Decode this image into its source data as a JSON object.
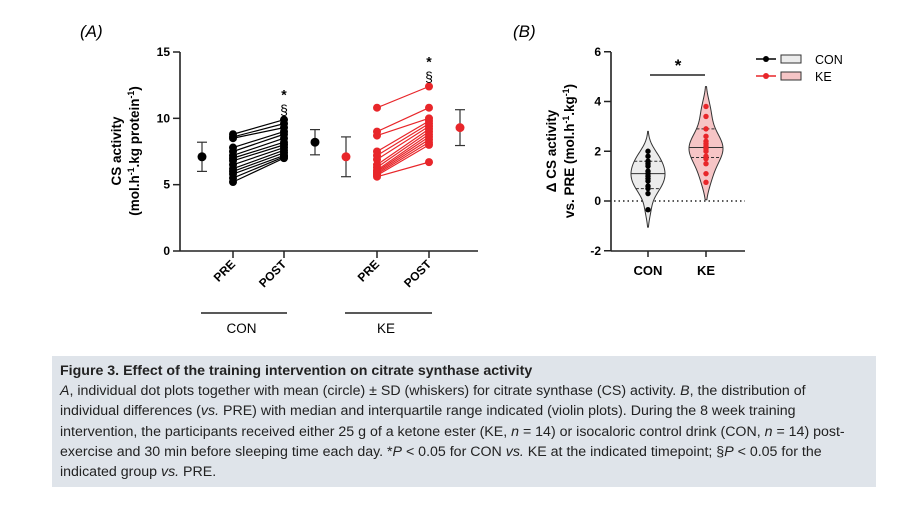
{
  "chart_data": [
    {
      "panel": "(A)",
      "type": "scatter",
      "ylabel_line1": "CS activity",
      "ylabel_line2": [
        "(mol.h",
        "-1",
        ".kg protein",
        "-1",
        ")"
      ],
      "ylim": [
        0,
        15
      ],
      "yticks": [
        "0",
        "5",
        "10",
        "15"
      ],
      "tick_labels": [
        "PRE",
        "POST",
        "PRE",
        "POST"
      ],
      "groups": [
        {
          "name": "CON",
          "color": "#000000",
          "pre": [
            8.8,
            8.6,
            8.5,
            7.8,
            7.5,
            7.2,
            7.0,
            6.8,
            6.5,
            6.2,
            6.0,
            5.8,
            5.5,
            5.2
          ],
          "post": [
            9.9,
            9.6,
            9.3,
            9.0,
            8.8,
            8.5,
            8.2,
            8.0,
            7.8,
            7.6,
            7.4,
            7.2,
            7.1,
            7.0
          ],
          "pre_mean": 7.1,
          "pre_sd": 1.1,
          "post_mean": 8.2,
          "post_sd": 0.95,
          "post_annotations": [
            "*",
            "§"
          ]
        },
        {
          "name": "KE",
          "color": "#e8262a",
          "pre": [
            10.8,
            9.0,
            8.7,
            7.5,
            7.2,
            6.9,
            6.5,
            6.3,
            6.1,
            6.0,
            5.9,
            5.8,
            5.7,
            5.6
          ],
          "post": [
            12.4,
            10.8,
            10.0,
            9.8,
            9.6,
            9.4,
            9.2,
            9.0,
            8.8,
            8.6,
            8.4,
            8.2,
            8.0,
            6.7
          ],
          "pre_mean": 7.1,
          "pre_sd": 1.5,
          "post_mean": 9.3,
          "post_sd": 1.35,
          "post_annotations": [
            "*",
            "§"
          ]
        }
      ]
    },
    {
      "panel": "(B)",
      "type": "violin",
      "ylabel_line1": "Δ CS activity",
      "ylabel_line2": [
        "vs. PRE (mol.h",
        "-1",
        ".kg",
        "-1",
        ")"
      ],
      "ylim": [
        -2,
        6
      ],
      "yticks": [
        "-2",
        "0",
        "2",
        "4",
        "6"
      ],
      "reference_line": 0,
      "significance": "*",
      "legend": {
        "placement": "top-right"
      },
      "series": [
        {
          "name": "CON",
          "color": "#000000",
          "fill": "#ececec",
          "values": [
            2.0,
            1.8,
            1.6,
            1.5,
            1.4,
            1.2,
            1.1,
            1.0,
            0.9,
            0.8,
            0.6,
            0.5,
            0.3,
            -0.35
          ],
          "median": 1.1,
          "q1": 0.5,
          "q3": 1.6
        },
        {
          "name": "KE",
          "color": "#e8262a",
          "fill": "#f6c5c6",
          "values": [
            3.8,
            3.4,
            2.9,
            2.6,
            2.4,
            2.3,
            2.2,
            2.1,
            2.0,
            1.8,
            1.7,
            1.5,
            1.1,
            0.75
          ],
          "median": 2.15,
          "q1": 1.75,
          "q3": 2.9
        }
      ]
    }
  ],
  "caption": {
    "title": "Figure 3.  Effect of the training intervention on citrate synthase activity",
    "segments": [
      {
        "t": "A",
        "i": true
      },
      {
        "t": ", individual dot plots together with mean (circle) ± SD (whiskers) for citrate synthase (CS) activity. "
      },
      {
        "t": "B",
        "i": true
      },
      {
        "t": ", the distribution of individual differences ("
      },
      {
        "t": "vs.",
        "i": true
      },
      {
        "t": " PRE) with median and interquartile range indicated (violin plots). During the 8 week training intervention, the participants received either 25 g of a ketone ester (KE, "
      },
      {
        "t": "n",
        "i": true
      },
      {
        "t": " = 14) or isocaloric control drink (CON, "
      },
      {
        "t": "n",
        "i": true
      },
      {
        "t": " = 14) post-exercise and 30 min before sleeping time each day. *"
      },
      {
        "t": "P",
        "i": true
      },
      {
        "t": " < 0.05 for CON "
      },
      {
        "t": "vs.",
        "i": true
      },
      {
        "t": " KE at the indicated timepoint; §"
      },
      {
        "t": "P",
        "i": true
      },
      {
        "t": " < 0.05 for the indicated group "
      },
      {
        "t": "vs.",
        "i": true
      },
      {
        "t": " PRE."
      }
    ]
  }
}
